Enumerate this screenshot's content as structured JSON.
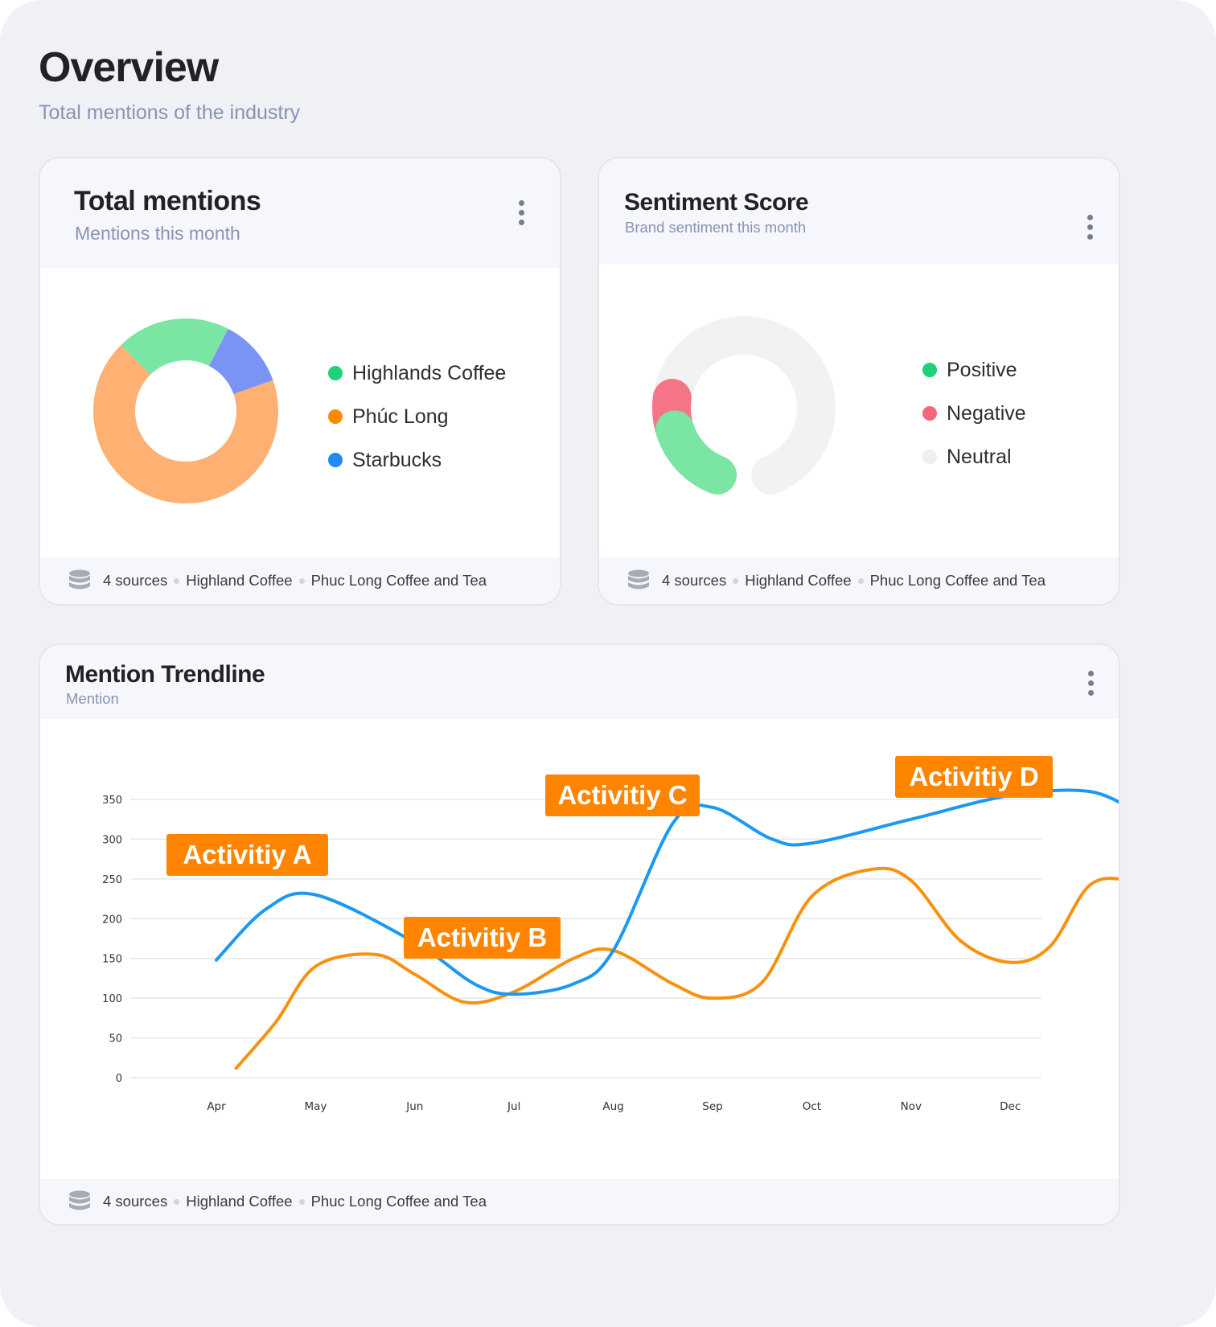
{
  "header": {
    "title": "Overview",
    "subtitle": "Total mentions of the industry"
  },
  "footer": {
    "sources": "4 sources",
    "brand_1": "Highland Coffee",
    "brand_2": "Phuc Long Coffee and Tea"
  },
  "total_mentions": {
    "title": "Total mentions",
    "subtitle": "Mentions this month",
    "legend": [
      {
        "label": "Highlands Coffee",
        "color": "#21d07a"
      },
      {
        "label": "Phúc Long",
        "color": "#ff8a00"
      },
      {
        "label": "Starbucks",
        "color": "#1f8bf5"
      }
    ]
  },
  "sentiment": {
    "title": "Sentiment Score",
    "subtitle": "Brand sentiment this month",
    "legend": [
      {
        "label": "Positive",
        "color": "#21d07a"
      },
      {
        "label": "Negative",
        "color": "#f4667c"
      },
      {
        "label": "Neutral",
        "color": "#efefef"
      }
    ]
  },
  "trendline": {
    "title": "Mention Trendline",
    "subtitle": "Mention",
    "annotations": [
      {
        "label": "Activitiy A",
        "color": "#ff8400"
      },
      {
        "label": "Activitiy B",
        "color": "#ff8400"
      },
      {
        "label": "Activitiy C",
        "color": "#ff8400"
      },
      {
        "label": "Activitiy D",
        "color": "#ff8400"
      }
    ]
  },
  "chart_data": [
    {
      "type": "pie",
      "title": "Total mentions",
      "categories": [
        "Highlands Coffee",
        "Phúc Long",
        "Starbucks"
      ],
      "values": [
        20,
        68,
        12
      ],
      "colors": [
        "#7be5a3",
        "#ffb072",
        "#7a94f5"
      ],
      "legend": "right"
    },
    {
      "type": "pie",
      "title": "Sentiment Score",
      "categories": [
        "Positive",
        "Negative",
        "Neutral"
      ],
      "values": [
        16,
        8,
        76
      ],
      "colors": [
        "#7be5a3",
        "#f57488",
        "#f2f2f2"
      ],
      "legend": "right"
    },
    {
      "type": "line",
      "title": "Mention Trendline",
      "x": [
        "Apr",
        "May",
        "Jun",
        "Jul",
        "Aug",
        "Sep",
        "Oct",
        "Nov",
        "Dec"
      ],
      "ylim": [
        0,
        350
      ],
      "yticks": [
        0,
        50,
        100,
        150,
        200,
        250,
        300,
        350
      ],
      "grid": true,
      "colors": [
        "#1a98f2",
        "#f7910f"
      ],
      "series": [
        {
          "points": [
            [
              3.0,
              148
            ],
            [
              3.5,
              212
            ],
            [
              4.0,
              230
            ],
            [
              5.0,
              170
            ],
            [
              5.6,
              118
            ],
            [
              6.0,
              105
            ],
            [
              6.6,
              118
            ],
            [
              7.0,
              160
            ],
            [
              7.6,
              320
            ],
            [
              8.0,
              340
            ],
            [
              8.6,
              300
            ],
            [
              9.0,
              295
            ],
            [
              10.0,
              325
            ],
            [
              11.0,
              355
            ],
            [
              11.8,
              360
            ],
            [
              12.3,
              332
            ]
          ]
        },
        {
          "points": [
            [
              3.2,
              12
            ],
            [
              3.6,
              70
            ],
            [
              4.0,
              140
            ],
            [
              4.6,
              155
            ],
            [
              5.0,
              130
            ],
            [
              5.5,
              95
            ],
            [
              6.0,
              108
            ],
            [
              6.6,
              150
            ],
            [
              7.0,
              160
            ],
            [
              7.6,
              118
            ],
            [
              8.0,
              100
            ],
            [
              8.5,
              120
            ],
            [
              9.0,
              228
            ],
            [
              9.6,
              262
            ],
            [
              10.0,
              248
            ],
            [
              10.5,
              172
            ],
            [
              11.0,
              145
            ],
            [
              11.4,
              165
            ],
            [
              11.8,
              242
            ],
            [
              12.2,
              248
            ],
            [
              12.45,
              232
            ]
          ]
        }
      ]
    }
  ]
}
